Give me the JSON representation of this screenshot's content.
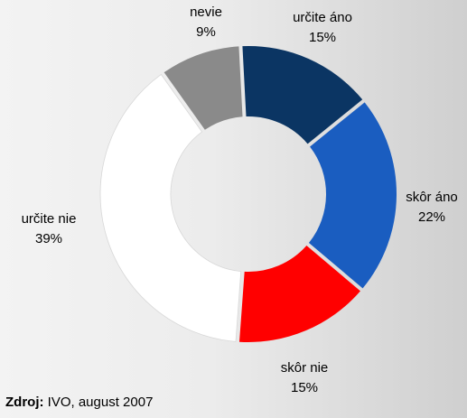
{
  "chart_data": {
    "type": "pie",
    "variant": "donut",
    "slices": [
      {
        "label": "určite áno",
        "value": 15,
        "value_label": "15%",
        "color": "#0b3563"
      },
      {
        "label": "skôr áno",
        "value": 22,
        "value_label": "22%",
        "color": "#1a5dc0"
      },
      {
        "label": "skôr nie",
        "value": 15,
        "value_label": "15%",
        "color": "#ff0000"
      },
      {
        "label": "určite nie",
        "value": 39,
        "value_label": "39%",
        "color": "#ffffff"
      },
      {
        "label": "nevie",
        "value": 9,
        "value_label": "9%",
        "color": "#8a8a8a"
      }
    ],
    "legend": "none",
    "grid": false
  },
  "source": {
    "label": "Zdroj:",
    "text": " IVO, august 2007"
  }
}
